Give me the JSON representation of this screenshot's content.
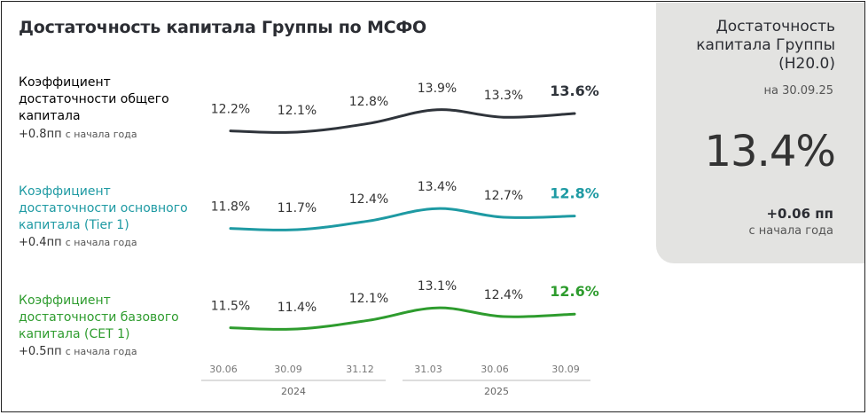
{
  "title": "Достаточность капитала Группы по МСФО",
  "colors": {
    "total": "#2f343b",
    "tier1": "#1e9aa3",
    "cet1": "#2e9c2e"
  },
  "rows": [
    {
      "label_lines": [
        "Коэффициент",
        "достаточности общего",
        "капитала"
      ],
      "delta": "+0.8пп",
      "delta_note": "с начала года",
      "color": "#2f343b"
    },
    {
      "label_lines": [
        "Коэффициент",
        "достаточности основного",
        "капитала (Tier 1)"
      ],
      "delta": "+0.4пп",
      "delta_note": "с начала года",
      "color": "#1e9aa3"
    },
    {
      "label_lines": [
        "Коэффициент",
        "достаточности базового",
        "капитала (CET 1)"
      ],
      "delta": "+0.5пп",
      "delta_note": "с начала года",
      "color": "#2e9c2e"
    }
  ],
  "panel": {
    "title_lines": [
      "Достаточность",
      "капитала Группы",
      "(Н20.0)"
    ],
    "date": "на 30.09.25",
    "value": "13.4%",
    "delta": "+0.06 пп",
    "delta_note": "с начала года"
  },
  "chart_data": {
    "type": "line",
    "x": [
      "30.06",
      "30.09",
      "31.12",
      "31.03",
      "30.06",
      "30.09"
    ],
    "x_groups": [
      {
        "label": "2024",
        "from": 0,
        "to": 2
      },
      {
        "label": "2025",
        "from": 3,
        "to": 5
      }
    ],
    "series": [
      {
        "name": "Коэффициент достаточности общего капитала",
        "values": [
          12.2,
          12.1,
          12.8,
          13.9,
          13.3,
          13.6
        ],
        "labels": [
          "12.2%",
          "12.1%",
          "12.8%",
          "13.9%",
          "13.3%",
          "13.6%"
        ]
      },
      {
        "name": "Коэффициент достаточности основного капитала (Tier 1)",
        "values": [
          11.8,
          11.7,
          12.4,
          13.4,
          12.7,
          12.8
        ],
        "labels": [
          "11.8%",
          "11.7%",
          "12.4%",
          "13.4%",
          "12.7%",
          "12.8%"
        ]
      },
      {
        "name": "Коэффициент достаточности базового капитала (CET 1)",
        "values": [
          11.5,
          11.4,
          12.1,
          13.1,
          12.4,
          12.6
        ],
        "labels": [
          "11.5%",
          "11.4%",
          "12.1%",
          "13.1%",
          "12.4%",
          "12.6%"
        ]
      }
    ]
  }
}
